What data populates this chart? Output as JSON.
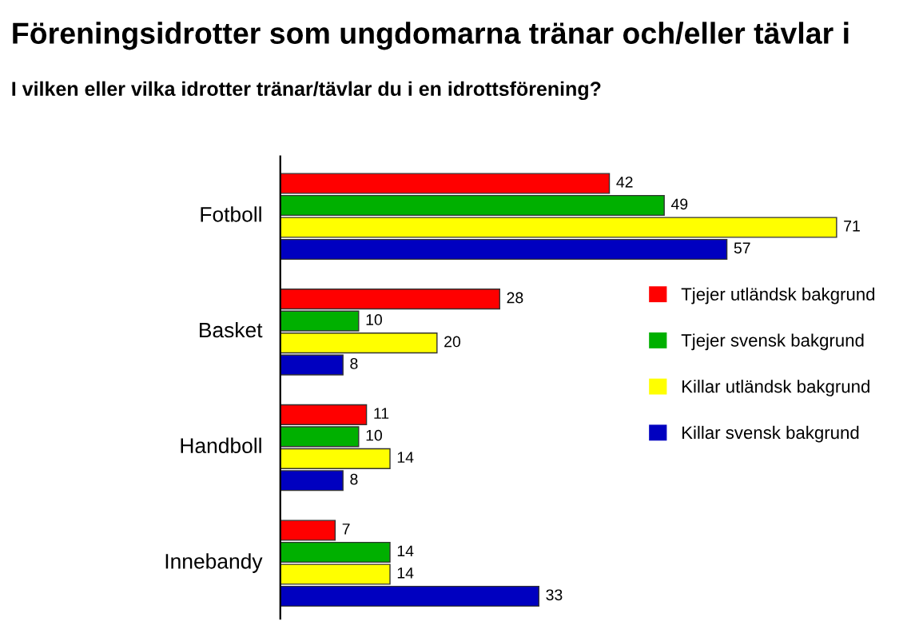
{
  "chart_data": {
    "type": "bar",
    "orientation": "horizontal",
    "title": "Föreningsidrotter som ungdomarna tränar och/eller tävlar i",
    "subtitle": "I vilken eller vilka idrotter tränar/tävlar du i en idrottsförening?",
    "categories": [
      "Fotboll",
      "Basket",
      "Handboll",
      "Innebandy"
    ],
    "series": [
      {
        "name": "Tjejer utländsk bakgrund",
        "color": "#ff0000",
        "values": [
          42,
          28,
          11,
          7
        ]
      },
      {
        "name": "Tjejer svensk bakgrund",
        "color": "#00b000",
        "values": [
          49,
          10,
          10,
          14
        ]
      },
      {
        "name": "Killar utländsk bakgrund",
        "color": "#ffff00",
        "values": [
          71,
          20,
          14,
          14
        ]
      },
      {
        "name": "Killar svensk bakgrund",
        "color": "#0000c0",
        "values": [
          57,
          8,
          8,
          33
        ]
      }
    ],
    "data_labels": true,
    "legend": "right",
    "grid": false,
    "tick_labels": "y"
  }
}
